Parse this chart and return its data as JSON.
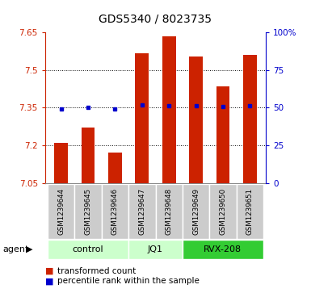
{
  "title": "GDS5340 / 8023735",
  "samples": [
    "GSM1239644",
    "GSM1239645",
    "GSM1239646",
    "GSM1239647",
    "GSM1239648",
    "GSM1239649",
    "GSM1239650",
    "GSM1239651"
  ],
  "bar_values": [
    7.21,
    7.27,
    7.17,
    7.565,
    7.635,
    7.555,
    7.435,
    7.56
  ],
  "dot_values": [
    7.345,
    7.35,
    7.344,
    7.36,
    7.357,
    7.357,
    7.355,
    7.358
  ],
  "bar_bottom": 7.05,
  "ylim_left": [
    7.05,
    7.65
  ],
  "ylim_right": [
    0,
    100
  ],
  "yticks_left": [
    7.05,
    7.2,
    7.35,
    7.5,
    7.65
  ],
  "yticks_right": [
    0,
    25,
    50,
    75,
    100
  ],
  "ytick_labels_right": [
    "0",
    "25",
    "50",
    "75",
    "100%"
  ],
  "bar_color": "#CC2200",
  "dot_color": "#0000CC",
  "group_configs": [
    {
      "label": "control",
      "start": 0,
      "end": 2,
      "color": "#ccffcc"
    },
    {
      "label": "JQ1",
      "start": 3,
      "end": 4,
      "color": "#ccffcc"
    },
    {
      "label": "RVX-208",
      "start": 5,
      "end": 7,
      "color": "#33cc33"
    }
  ],
  "agent_label": "agent",
  "legend_bar_label": "transformed count",
  "legend_dot_label": "percentile rank within the sample",
  "bar_width": 0.5,
  "sample_box_color": "#cccccc",
  "border_color": "#aaaaaa"
}
